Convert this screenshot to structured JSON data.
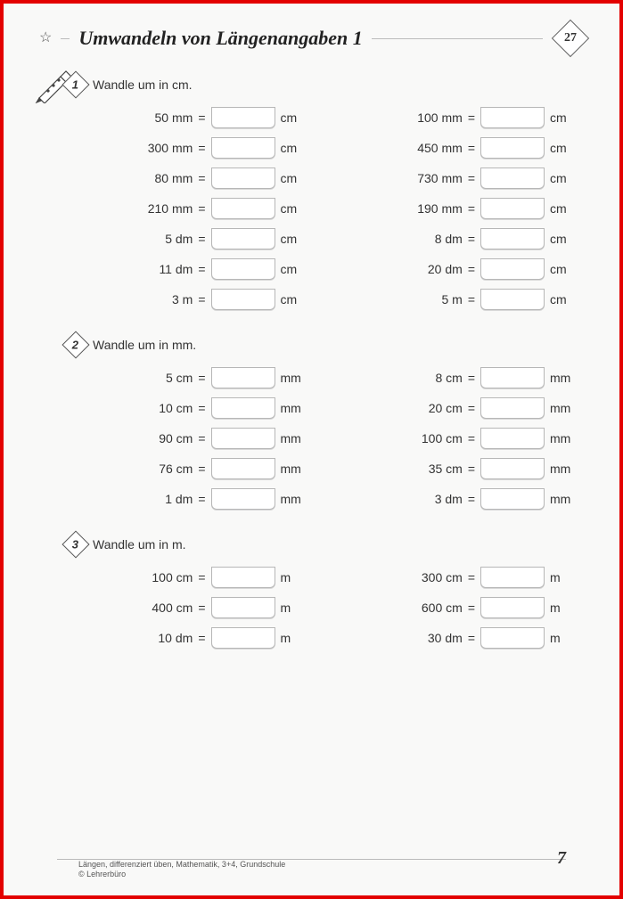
{
  "title": "Umwandeln von Längenangaben 1",
  "badge_number": "27",
  "page_number": "7",
  "footer_line1": "Längen, differenziert üben, Mathematik, 3+4, Grundschule",
  "footer_line2": "© Lehrerbüro",
  "sections": [
    {
      "num": "1",
      "instr": "Wandle um in cm.",
      "unit": "cm",
      "show_pen": true,
      "left": [
        "50 mm",
        "300 mm",
        "80 mm",
        "210 mm",
        "5 dm",
        "11 dm",
        "3 m"
      ],
      "right": [
        "100 mm",
        "450 mm",
        "730 mm",
        "190 mm",
        "8 dm",
        "20 dm",
        "5 m"
      ]
    },
    {
      "num": "2",
      "instr": "Wandle um in mm.",
      "unit": "mm",
      "show_pen": false,
      "left": [
        "5 cm",
        "10 cm",
        "90 cm",
        "76 cm",
        "1 dm"
      ],
      "right": [
        "8 cm",
        "20 cm",
        "100 cm",
        "35 cm",
        "3 dm"
      ]
    },
    {
      "num": "3",
      "instr": "Wandle um in m.",
      "unit": "m",
      "show_pen": false,
      "left": [
        "100 cm",
        "400 cm",
        "10 dm"
      ],
      "right": [
        "300 cm",
        "600 cm",
        "30 dm"
      ]
    }
  ]
}
